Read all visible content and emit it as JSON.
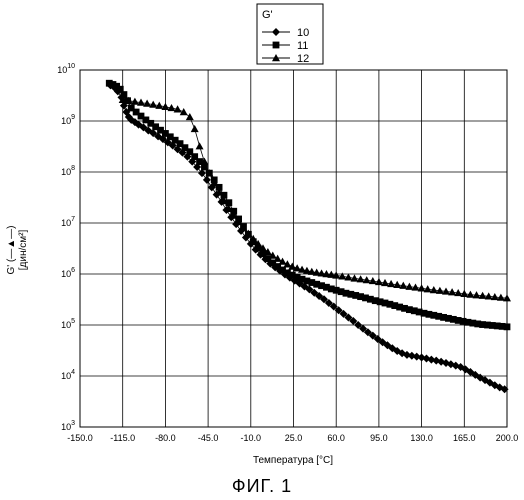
{
  "figure_caption": "ФИГ. 1",
  "chart_data": {
    "type": "scatter",
    "title": "",
    "legend": {
      "title": "G'",
      "placement": "top-right",
      "entries": [
        "10",
        "11",
        "12"
      ]
    },
    "xlabel": "Температура [°C]",
    "ylabel_line1": "G' (—▲—)",
    "ylabel_line2": "[дин/см²]",
    "xlim": [
      -150,
      200
    ],
    "ylim": [
      1000,
      10000000000
    ],
    "y_scale": "log",
    "grid": true,
    "x_ticks": [
      "-150.0",
      "-115.0",
      "-80.0",
      "-45.0",
      "-10.0",
      "25.0",
      "60.0",
      "95.0",
      "130.0",
      "165.0",
      "200.0"
    ],
    "y_tick_base": "10",
    "y_tick_exps": [
      "3",
      "4",
      "5",
      "6",
      "7",
      "8",
      "9",
      "10"
    ],
    "series": [
      {
        "name": "10",
        "marker": "diamond",
        "x": [
          -125,
          -122,
          -119,
          -116,
          -114,
          -112,
          -110,
          -108,
          -105,
          -102,
          -98,
          -94,
          -90,
          -86,
          -82,
          -78,
          -74,
          -70,
          -66,
          -62,
          -58,
          -54,
          -50,
          -46,
          -42,
          -38,
          -34,
          -30,
          -26,
          -22,
          -18,
          -14,
          -10,
          -6,
          -2,
          2,
          6,
          10,
          14,
          18,
          22,
          26,
          30,
          34,
          38,
          42,
          46,
          50,
          54,
          58,
          62,
          66,
          70,
          74,
          78,
          82,
          86,
          90,
          94,
          98,
          102,
          106,
          110,
          114,
          118,
          122,
          126,
          130,
          134,
          138,
          142,
          146,
          150,
          154,
          158,
          162,
          166,
          170,
          174,
          178,
          182,
          186,
          190,
          194,
          198
        ],
        "y": [
          5000000000,
          4600000000,
          3800000000,
          2900000000,
          2000000000,
          1500000000,
          1200000000,
          1050000000,
          950000000,
          850000000,
          750000000,
          650000000,
          580000000,
          500000000,
          440000000,
          380000000,
          330000000,
          280000000,
          240000000,
          200000000,
          160000000,
          125000000,
          95000000,
          70000000,
          50000000,
          36000000,
          26000000,
          18000000,
          13000000,
          9500000,
          7000000,
          5200000,
          3900000,
          3000000,
          2400000,
          1950000,
          1600000,
          1350000,
          1150000,
          980000,
          850000,
          740000,
          650000,
          570000,
          500000,
          430000,
          370000,
          320000,
          270000,
          230000,
          195000,
          165000,
          140000,
          120000,
          100000,
          85000,
          72000,
          62000,
          53000,
          46000,
          40000,
          35000,
          31000,
          28000,
          26000,
          25000,
          24000,
          23000,
          22000,
          21000,
          20000,
          19000,
          18000,
          17000,
          16000,
          15000,
          13500,
          12000,
          10500,
          9300,
          8300,
          7400,
          6600,
          6000,
          5500
        ]
      },
      {
        "name": "11",
        "marker": "square",
        "x": [
          -126,
          -123,
          -120,
          -117,
          -114,
          -111,
          -108,
          -104,
          -100,
          -96,
          -92,
          -88,
          -84,
          -80,
          -76,
          -72,
          -68,
          -64,
          -60,
          -56,
          -52,
          -48,
          -44,
          -40,
          -36,
          -32,
          -28,
          -24,
          -20,
          -16,
          -12,
          -8,
          -4,
          0,
          4,
          8,
          12,
          16,
          20,
          24,
          28,
          32,
          36,
          40,
          44,
          48,
          52,
          56,
          60,
          64,
          68,
          72,
          76,
          80,
          84,
          88,
          92,
          96,
          100,
          104,
          108,
          112,
          116,
          120,
          124,
          128,
          132,
          136,
          140,
          144,
          148,
          152,
          156,
          160,
          164,
          168,
          172,
          176,
          180,
          184,
          188,
          192,
          196,
          200
        ],
        "y": [
          5500000000,
          5200000000,
          4800000000,
          4200000000,
          3300000000,
          2500000000,
          1800000000,
          1500000000,
          1250000000,
          1050000000,
          900000000,
          770000000,
          660000000,
          570000000,
          490000000,
          420000000,
          360000000,
          300000000,
          250000000,
          200000000,
          160000000,
          125000000,
          95000000,
          70000000,
          50000000,
          35000000,
          25000000,
          17000000,
          12000000,
          8500000,
          6000000,
          4300000,
          3200000,
          2500000,
          2000000,
          1650000,
          1400000,
          1200000,
          1050000,
          950000,
          860000,
          790000,
          730000,
          680000,
          630000,
          590000,
          550000,
          510000,
          480000,
          450000,
          420000,
          400000,
          380000,
          360000,
          340000,
          320000,
          300000,
          285000,
          270000,
          255000,
          240000,
          225000,
          212000,
          200000,
          190000,
          180000,
          170000,
          162000,
          155000,
          148000,
          141000,
          135000,
          129000,
          123000,
          118000,
          113000,
          109000,
          105000,
          102000,
          100000,
          98000,
          96000,
          94000,
          92000
        ]
      },
      {
        "name": "12",
        "marker": "triangle",
        "x": [
          -115,
          -110,
          -105,
          -100,
          -95,
          -90,
          -85,
          -80,
          -75,
          -70,
          -65,
          -60,
          -56,
          -52,
          -48,
          -44,
          -40,
          -36,
          -32,
          -28,
          -24,
          -20,
          -16,
          -12,
          -8,
          -4,
          0,
          4,
          8,
          12,
          16,
          20,
          24,
          28,
          32,
          36,
          40,
          44,
          48,
          52,
          56,
          60,
          65,
          70,
          75,
          80,
          85,
          90,
          95,
          100,
          105,
          110,
          115,
          120,
          125,
          130,
          135,
          140,
          145,
          150,
          155,
          160,
          165,
          170,
          175,
          180,
          185,
          190,
          195,
          200
        ],
        "y": [
          2600000000,
          2500000000,
          2400000000,
          2300000000,
          2200000000,
          2100000000,
          2000000000,
          1900000000,
          1800000000,
          1700000000,
          1500000000,
          1200000000,
          700000000,
          320000000,
          160000000,
          95000000,
          60000000,
          40000000,
          27000000,
          19000000,
          14000000,
          10500000,
          8000000,
          6200000,
          4900000,
          3900000,
          3200000,
          2700000,
          2300000,
          2000000,
          1750000,
          1550000,
          1400000,
          1300000,
          1220000,
          1160000,
          1110000,
          1070000,
          1030000,
          1000000,
          970000,
          940000,
          900000,
          860000,
          820000,
          790000,
          760000,
          730000,
          700000,
          670000,
          640000,
          615000,
          590000,
          565000,
          545000,
          525000,
          505000,
          485000,
          470000,
          455000,
          440000,
          425000,
          410000,
          395000,
          385000,
          375000,
          365000,
          355000,
          345000,
          335000
        ]
      }
    ]
  }
}
